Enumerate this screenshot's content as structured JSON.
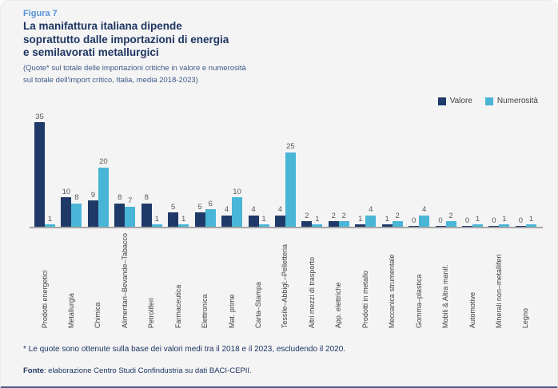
{
  "figure": {
    "label": "Figura 7",
    "title_lines": [
      "La manifattura italiana dipende",
      "soprattutto dalle importazioni di energia",
      "e semilavorati metallurgici"
    ],
    "subtitle_lines": [
      "(Quote* sul totale delle importazioni critiche in valore e numerosità",
      "sul totale dell'import critico, Italia, media 2018-2023)"
    ]
  },
  "chart_data": {
    "type": "bar",
    "title": "La manifattura italiana dipende soprattutto dalle importazioni di energia e semilavorati metallurgici",
    "categories": [
      "Prodotti energetici",
      "Metallurgia",
      "Chimica",
      "Alimentari–Bevande–Tabacco",
      "Petroliferi",
      "Farmaceutica",
      "Elettronica",
      "Mat. prime",
      "Carta–Stampa",
      "Tessile–Abbigl.–Pelletteria",
      "Altri mezzi di trasporto",
      "App. elettriche",
      "Prodotti in metallo",
      "Meccanica strumentale",
      "Gomma–plastica",
      "Mobili & Altra manif.",
      "Automotive",
      "Minerali non–metalliferi",
      "Legno"
    ],
    "series": [
      {
        "name": "Valore",
        "color": "#1f3a68",
        "values": [
          35,
          10,
          9,
          8,
          8,
          5,
          5,
          4,
          4,
          4,
          2,
          2,
          1,
          1,
          0,
          0,
          0,
          0,
          0
        ]
      },
      {
        "name": "Numerosità",
        "color": "#49b5d7",
        "values": [
          1,
          8,
          20,
          7,
          1,
          1,
          6,
          10,
          1,
          25,
          1,
          2,
          4,
          2,
          4,
          2,
          1,
          1,
          1
        ]
      }
    ],
    "xlabel": "",
    "ylabel": "",
    "ylim": [
      0,
      35
    ],
    "grid": false,
    "legend_position": "top-right",
    "data_labels": true
  },
  "footnote": "* Le quote sono ottenute sulla base dei valori medi tra il 2018 e il 2023, escludendo il 2020.",
  "source": {
    "label": "Fonte",
    "text": ": elaborazione Centro Studi Confindustria su dati BACI-CEPII."
  }
}
